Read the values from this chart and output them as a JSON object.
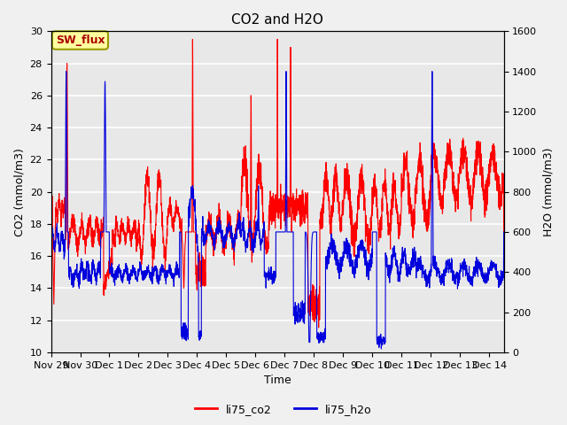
{
  "title": "CO2 and H2O",
  "xlabel": "Time",
  "ylabel_left": "CO2 (mmol/m3)",
  "ylabel_right": "H2O (mmol/m3)",
  "xlim_days": [
    0,
    15.5
  ],
  "ylim_left": [
    10,
    30
  ],
  "ylim_right": [
    0,
    1600
  ],
  "yticks_left": [
    10,
    12,
    14,
    16,
    18,
    20,
    22,
    24,
    26,
    28,
    30
  ],
  "yticks_right": [
    0,
    200,
    400,
    600,
    800,
    1000,
    1200,
    1400,
    1600
  ],
  "xtick_labels": [
    "Nov 29",
    "Nov 30",
    "Dec 1",
    "Dec 2",
    "Dec 3",
    "Dec 4",
    "Dec 5",
    "Dec 6",
    "Dec 7",
    "Dec 8",
    "Dec 9",
    "Dec 10",
    "Dec 11",
    "Dec 12",
    "Dec 13",
    "Dec 14"
  ],
  "xtick_positions": [
    0,
    1,
    2,
    3,
    4,
    5,
    6,
    7,
    8,
    9,
    10,
    11,
    12,
    13,
    14,
    15
  ],
  "co2_color": "#ff0000",
  "h2o_color": "#0000dd",
  "plot_bg_color": "#e8e8e8",
  "fig_bg_color": "#f0f0f0",
  "sw_flux_bg": "#ffffa0",
  "sw_flux_border": "#999900",
  "sw_flux_text_color": "#aa0000",
  "legend_co2": "li75_co2",
  "legend_h2o": "li75_h2o",
  "grid_color": "#ffffff",
  "title_fontsize": 11,
  "axis_label_fontsize": 9,
  "tick_fontsize": 8
}
